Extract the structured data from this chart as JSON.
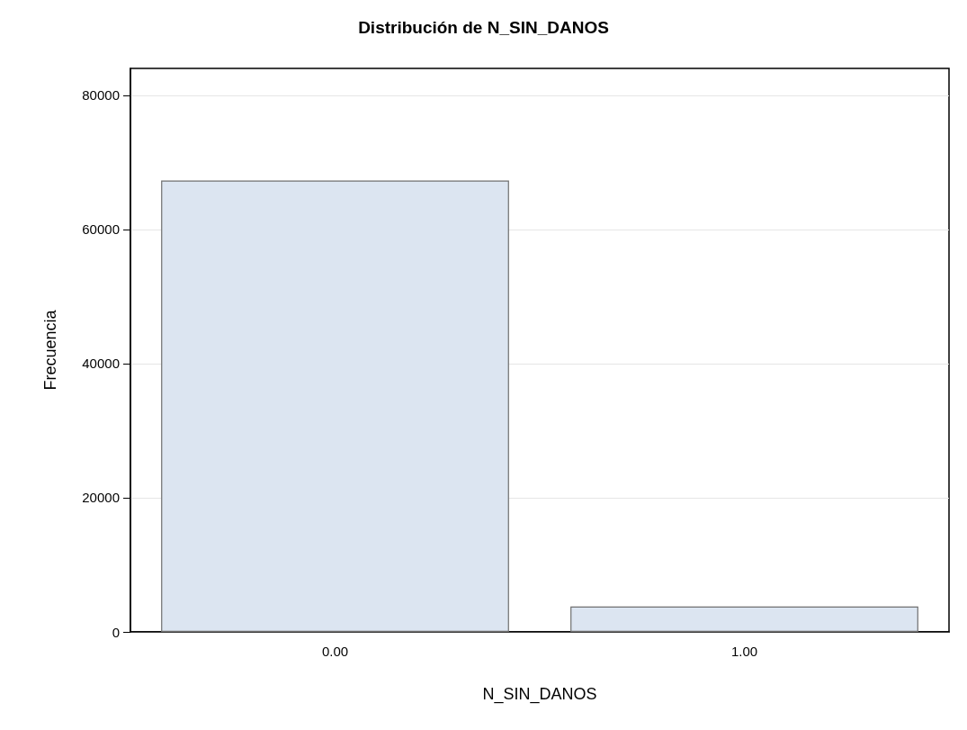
{
  "chart_data": {
    "type": "bar",
    "title": "Distribución de N_SIN_DANOS",
    "xlabel": "N_SIN_DANOS",
    "ylabel": "Frecuencia",
    "categories": [
      "0.00",
      "1.00"
    ],
    "values": [
      67300,
      3800
    ],
    "color": "#dce5f1",
    "ylim": [
      0,
      84000
    ],
    "yticks": [
      0,
      20000,
      40000,
      60000,
      80000
    ],
    "grid": "y"
  }
}
